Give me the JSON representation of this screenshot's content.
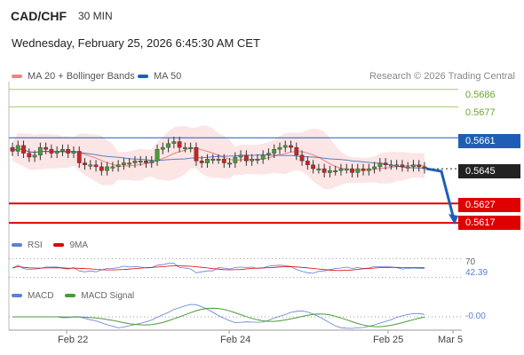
{
  "header": {
    "symbol": "CAD/CHF",
    "interval": "30 MIN",
    "datetime": "Wednesday, February 25, 2026 6:45:30 AM CET"
  },
  "legend": {
    "ma20": "MA 20 + Bollinger Bands",
    "ma50": "MA 50",
    "credit": "Research © 2026 Trading Central"
  },
  "colors": {
    "ma20": "#f08080",
    "ma50": "#1e5fb5",
    "band": "#fbe0e0",
    "up": "#4a9a3a",
    "down": "#cc2222",
    "resistance": "#a6cc6a",
    "support": "#e00000",
    "pivot": "#1e5fb5",
    "rsi": "#5b7fd6",
    "rsi_ma": "#e00000",
    "macd": "#5b7fd6",
    "macd_signal": "#4a9a3a"
  },
  "chart_data": {
    "type": "candlestick",
    "x_ticks": [
      "Feb 22",
      "Feb 24",
      "Feb 25",
      "Mar 5"
    ],
    "ylim": [
      0.5612,
      0.569
    ],
    "close": [
      0.5654,
      0.5657,
      0.5653,
      0.5651,
      0.5652,
      0.5656,
      0.5655,
      0.5653,
      0.5654,
      0.5655,
      0.5653,
      0.5654,
      0.5648,
      0.5647,
      0.5647,
      0.5646,
      0.5644,
      0.5646,
      0.5646,
      0.5647,
      0.5648,
      0.5648,
      0.5649,
      0.5649,
      0.5648,
      0.5649,
      0.5655,
      0.5656,
      0.5658,
      0.5659,
      0.5656,
      0.5656,
      0.5656,
      0.5649,
      0.5648,
      0.565,
      0.565,
      0.565,
      0.5648,
      0.5648,
      0.5651,
      0.5652,
      0.5649,
      0.565,
      0.565,
      0.5652,
      0.5653,
      0.5655,
      0.5656,
      0.5657,
      0.5656,
      0.5652,
      0.5649,
      0.5647,
      0.5645,
      0.5645,
      0.5643,
      0.5644,
      0.5644,
      0.5645,
      0.5645,
      0.5643,
      0.5645,
      0.5644,
      0.5645,
      0.5646,
      0.5648,
      0.5647,
      0.5647,
      0.5647,
      0.5646,
      0.5646,
      0.5647,
      0.5646,
      0.5645
    ],
    "levels": [
      {
        "label": "0.5686",
        "value": 0.5686,
        "kind": "resistance"
      },
      {
        "label": "0.5677",
        "value": 0.5677,
        "kind": "resistance"
      },
      {
        "label": "0.5661",
        "value": 0.5661,
        "kind": "pivot"
      },
      {
        "label": "0.5645",
        "value": 0.5645,
        "kind": "last"
      },
      {
        "label": "0.5627",
        "value": 0.5627,
        "kind": "support"
      },
      {
        "label": "0.5617",
        "value": 0.5617,
        "kind": "support"
      }
    ],
    "forecast_target": 0.5617,
    "rsi": {
      "labels": [
        "RSI",
        "9MA"
      ],
      "levels": [
        "70",
        "42.39"
      ],
      "ylim": [
        20,
        80
      ]
    },
    "macd": {
      "labels": [
        "MACD",
        "MACD Signal"
      ],
      "level": "-0.00"
    }
  }
}
